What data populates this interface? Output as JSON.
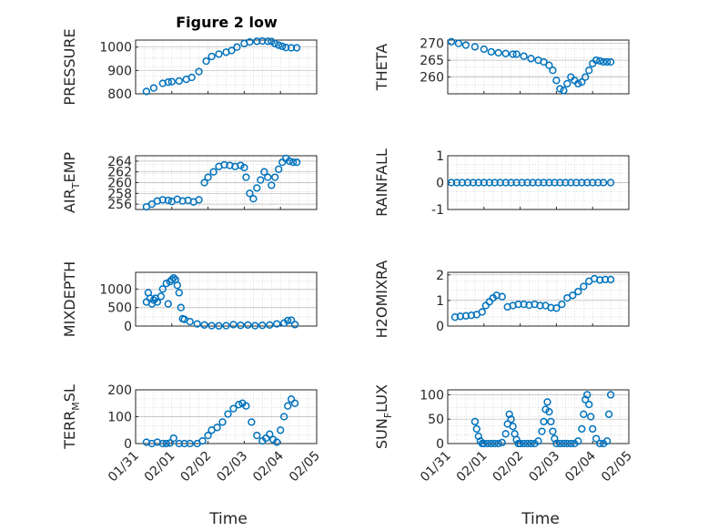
{
  "figure": {
    "title": "Figure 2 low",
    "xlabel": "Time",
    "marker_color": "#0072BD"
  },
  "x_ticks": [
    "01/31",
    "02/01",
    "02/02",
    "02/03",
    "02/04",
    "02/05"
  ],
  "chart_data": [
    {
      "type": "scatter",
      "ylabel_parts": [
        "PRESSURE"
      ],
      "ylim": [
        800,
        1030
      ],
      "yticks": [
        "800",
        "900",
        "1000"
      ],
      "ytick_values": [
        800,
        900,
        1000
      ],
      "x_days": [
        0.3,
        0.5,
        0.75,
        0.9,
        1.0,
        1.2,
        1.4,
        1.55,
        1.75,
        1.95,
        2.1,
        2.3,
        2.5,
        2.65,
        2.8,
        3.0,
        3.15,
        3.35,
        3.5,
        3.65,
        3.75,
        3.85,
        3.95,
        4.05,
        4.15,
        4.3,
        4.45
      ],
      "values": [
        810,
        825,
        845,
        850,
        852,
        855,
        862,
        870,
        895,
        940,
        960,
        970,
        978,
        985,
        1000,
        1015,
        1022,
        1025,
        1026,
        1025,
        1024,
        1015,
        1008,
        1003,
        998,
        997,
        997
      ]
    },
    {
      "type": "scatter",
      "ylabel_parts": [
        "THETA"
      ],
      "ylim": [
        255,
        271
      ],
      "yticks": [
        "260",
        "265",
        "270"
      ],
      "ytick_values": [
        260,
        265,
        270
      ],
      "x_days": [
        0.1,
        0.3,
        0.5,
        0.75,
        1.0,
        1.2,
        1.4,
        1.6,
        1.8,
        1.9,
        2.1,
        2.3,
        2.5,
        2.65,
        2.8,
        2.9,
        3.0,
        3.1,
        3.2,
        3.3,
        3.4,
        3.5,
        3.6,
        3.7,
        3.8,
        3.9,
        4.0,
        4.1,
        4.2,
        4.3,
        4.4,
        4.5
      ],
      "values": [
        270.5,
        270,
        269.5,
        269,
        268.3,
        267.5,
        267.2,
        267,
        266.8,
        266.8,
        266.2,
        265.5,
        265,
        264.5,
        263.5,
        262,
        259,
        256.5,
        256,
        258,
        260,
        259,
        258,
        258.5,
        260,
        262,
        264,
        265,
        264.8,
        264.5,
        264.5,
        264.5
      ]
    },
    {
      "type": "scatter",
      "ylabel_parts": [
        "AIR",
        "T",
        "EMP"
      ],
      "ylim": [
        255,
        265
      ],
      "yticks": [
        "256",
        "258",
        "260",
        "262",
        "264"
      ],
      "ytick_values": [
        256,
        258,
        260,
        262,
        264
      ],
      "x_days": [
        0.3,
        0.45,
        0.6,
        0.75,
        0.9,
        1.0,
        1.15,
        1.3,
        1.45,
        1.6,
        1.75,
        1.9,
        2.0,
        2.15,
        2.3,
        2.45,
        2.6,
        2.75,
        2.9,
        3.0,
        3.05,
        3.15,
        3.25,
        3.35,
        3.45,
        3.55,
        3.65,
        3.75,
        3.85,
        3.95,
        4.05,
        4.15,
        4.25,
        4.35,
        4.45
      ],
      "values": [
        255.5,
        256,
        256.6,
        256.8,
        256.7,
        256.5,
        256.9,
        256.6,
        256.7,
        256.4,
        256.8,
        260,
        261,
        262,
        263,
        263.3,
        263.2,
        263,
        263.2,
        262.8,
        261,
        258,
        257,
        259,
        260.5,
        262,
        261,
        259.5,
        261,
        262.5,
        263.8,
        264.5,
        264,
        263.8,
        263.8
      ]
    },
    {
      "type": "scatter",
      "ylabel_parts": [
        "RAINFALL"
      ],
      "ylim": [
        -1,
        1
      ],
      "yticks": [
        "-1",
        "0",
        "1"
      ],
      "ytick_values": [
        -1,
        0,
        1
      ],
      "x_days": [
        0.1,
        0.25,
        0.4,
        0.55,
        0.7,
        0.85,
        1.0,
        1.15,
        1.3,
        1.45,
        1.6,
        1.75,
        1.9,
        2.05,
        2.2,
        2.35,
        2.5,
        2.65,
        2.8,
        2.95,
        3.1,
        3.25,
        3.4,
        3.55,
        3.7,
        3.85,
        4.0,
        4.15,
        4.3,
        4.5
      ],
      "values": [
        0,
        0,
        0,
        0,
        0,
        0,
        0,
        0,
        0,
        0,
        0,
        0,
        0,
        0,
        0,
        0,
        0,
        0,
        0,
        0,
        0,
        0,
        0,
        0,
        0,
        0,
        0,
        0,
        0,
        0
      ]
    },
    {
      "type": "scatter",
      "ylabel_parts": [
        "MIXDEPTH"
      ],
      "ylim": [
        0,
        1450
      ],
      "yticks": [
        "0",
        "500",
        "1000"
      ],
      "ytick_values": [
        0,
        500,
        1000
      ],
      "x_days": [
        0.3,
        0.35,
        0.4,
        0.45,
        0.5,
        0.55,
        0.6,
        0.7,
        0.75,
        0.85,
        0.9,
        0.95,
        1.0,
        1.05,
        1.1,
        1.15,
        1.2,
        1.25,
        1.3,
        1.35,
        1.5,
        1.7,
        1.9,
        2.1,
        2.3,
        2.5,
        2.7,
        2.9,
        3.1,
        3.3,
        3.5,
        3.7,
        3.9,
        4.1,
        4.2,
        4.3,
        4.4
      ],
      "values": [
        650,
        900,
        750,
        600,
        700,
        750,
        650,
        800,
        1000,
        1150,
        600,
        1200,
        1250,
        1300,
        1250,
        1100,
        900,
        500,
        200,
        180,
        120,
        60,
        30,
        10,
        5,
        10,
        40,
        20,
        30,
        10,
        20,
        30,
        60,
        80,
        150,
        160,
        40
      ]
    },
    {
      "type": "scatter",
      "ylabel_parts": [
        "H2OMIXRA"
      ],
      "ylim": [
        0,
        2.1
      ],
      "yticks": [
        "0",
        "1",
        "2"
      ],
      "ytick_values": [
        0,
        1,
        2
      ],
      "x_days": [
        0.2,
        0.35,
        0.5,
        0.65,
        0.8,
        0.95,
        1.05,
        1.15,
        1.25,
        1.35,
        1.5,
        1.65,
        1.8,
        1.95,
        2.1,
        2.25,
        2.4,
        2.55,
        2.7,
        2.85,
        3.0,
        3.15,
        3.3,
        3.45,
        3.6,
        3.75,
        3.9,
        4.05,
        4.2,
        4.35,
        4.5
      ],
      "values": [
        0.35,
        0.38,
        0.4,
        0.42,
        0.45,
        0.55,
        0.8,
        0.95,
        1.1,
        1.2,
        1.15,
        0.75,
        0.8,
        0.85,
        0.85,
        0.82,
        0.85,
        0.8,
        0.8,
        0.72,
        0.7,
        0.85,
        1.1,
        1.2,
        1.35,
        1.55,
        1.75,
        1.85,
        1.8,
        1.82,
        1.82
      ]
    },
    {
      "type": "scatter",
      "ylabel_parts": [
        "TERR",
        "M",
        "SL"
      ],
      "ylim": [
        0,
        200
      ],
      "yticks": [
        "0",
        "100",
        "200"
      ],
      "ytick_values": [
        0,
        100,
        200
      ],
      "x_days": [
        0.3,
        0.45,
        0.6,
        0.75,
        0.85,
        0.95,
        1.05,
        1.2,
        1.35,
        1.5,
        1.7,
        1.85,
        2.0,
        2.1,
        2.25,
        2.4,
        2.55,
        2.7,
        2.85,
        2.95,
        3.05,
        3.2,
        3.35,
        3.5,
        3.6,
        3.7,
        3.8,
        3.9,
        4.0,
        4.1,
        4.2,
        4.3,
        4.4
      ],
      "values": [
        5,
        0,
        5,
        0,
        0,
        2,
        20,
        0,
        0,
        0,
        0,
        10,
        30,
        50,
        60,
        80,
        110,
        130,
        145,
        150,
        140,
        80,
        30,
        10,
        20,
        35,
        15,
        5,
        50,
        100,
        140,
        165,
        150
      ]
    },
    {
      "type": "scatter",
      "ylabel_parts": [
        "SUN",
        "F",
        "LUX"
      ],
      "ylim": [
        0,
        110
      ],
      "yticks": [
        "0",
        "50",
        "100"
      ],
      "ytick_values": [
        0,
        50,
        100
      ],
      "x_days": [
        0.75,
        0.8,
        0.85,
        0.9,
        0.95,
        1.0,
        1.1,
        1.2,
        1.3,
        1.4,
        1.5,
        1.6,
        1.65,
        1.7,
        1.75,
        1.8,
        1.85,
        1.9,
        1.95,
        2.0,
        2.1,
        2.2,
        2.3,
        2.4,
        2.5,
        2.6,
        2.65,
        2.7,
        2.75,
        2.8,
        2.85,
        2.9,
        2.95,
        3.0,
        3.1,
        3.2,
        3.3,
        3.4,
        3.5,
        3.6,
        3.7,
        3.75,
        3.8,
        3.85,
        3.9,
        3.95,
        4.0,
        4.1,
        4.2,
        4.3,
        4.4,
        4.45,
        4.5
      ],
      "values": [
        45,
        30,
        15,
        5,
        0,
        0,
        0,
        0,
        0,
        0,
        2,
        20,
        40,
        60,
        50,
        35,
        20,
        8,
        0,
        0,
        0,
        0,
        0,
        0,
        5,
        25,
        45,
        70,
        85,
        65,
        45,
        25,
        10,
        0,
        0,
        0,
        0,
        0,
        0,
        5,
        30,
        60,
        90,
        100,
        80,
        55,
        30,
        10,
        0,
        0,
        5,
        60,
        100
      ]
    }
  ]
}
